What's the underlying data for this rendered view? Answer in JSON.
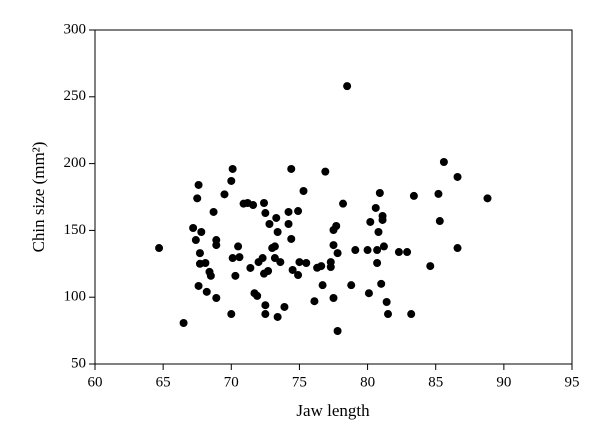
{
  "chart_data": {
    "type": "scatter",
    "xlabel": "Jaw length",
    "ylabel": "Chin size (mm²)",
    "xlim": [
      60,
      95
    ],
    "xticks": [
      60,
      65,
      70,
      75,
      80,
      85,
      90,
      95
    ],
    "ylim": [
      50,
      300
    ],
    "yticks": [
      50,
      100,
      150,
      200,
      250,
      300
    ],
    "color": "#000000",
    "x": [
      64.7,
      66.5,
      67.2,
      67.4,
      67.5,
      67.6,
      67.6,
      67.8,
      67.7,
      67.7,
      68.1,
      68.2,
      68.4,
      68.5,
      68.7,
      68.9,
      68.9,
      68.9,
      69.5,
      70.0,
      70.1,
      70.0,
      70.1,
      70.3,
      70.5,
      70.6,
      70.9,
      71.2,
      71.4,
      71.6,
      71.7,
      71.9,
      72.0,
      72.3,
      72.4,
      72.5,
      72.5,
      72.5,
      72.4,
      72.8,
      73.0,
      72.7,
      73.3,
      73.2,
      73.2,
      73.4,
      73.4,
      73.6,
      73.9,
      74.2,
      74.2,
      74.4,
      74.4,
      74.5,
      74.9,
      74.9,
      75.0,
      75.3,
      75.5,
      76.1,
      76.3,
      76.6,
      76.7,
      76.9,
      77.3,
      77.3,
      77.5,
      77.5,
      77.7,
      77.5,
      77.8,
      77.8,
      78.2,
      78.5,
      78.8,
      79.1,
      80.0,
      80.1,
      80.2,
      80.6,
      80.7,
      80.8,
      80.7,
      80.9,
      81.0,
      81.1,
      81.1,
      81.2,
      81.4,
      81.5,
      82.3,
      82.9,
      83.2,
      83.4,
      84.6,
      85.2,
      85.3,
      85.6,
      86.6,
      86.6,
      88.8
    ],
    "values": [
      136.8,
      80.7,
      151.8,
      142.8,
      174,
      184,
      108.4,
      148.8,
      133,
      125,
      125.6,
      104,
      119,
      116,
      163.8,
      142.8,
      139,
      99.4,
      177,
      187,
      196,
      87.4,
      129.3,
      116,
      138,
      130,
      170,
      170.5,
      121.9,
      169,
      103,
      101,
      126.3,
      129.3,
      170.5,
      163,
      94,
      87.4,
      117.6,
      154.8,
      136.8,
      119.6,
      159.3,
      138,
      129.3,
      148.8,
      85.2,
      126.3,
      92.7,
      154.8,
      163.8,
      196,
      143.6,
      120.4,
      164.5,
      116.6,
      126.3,
      179.5,
      125.6,
      97,
      122,
      123.3,
      109,
      194,
      126.3,
      122.6,
      150.3,
      139,
      153.3,
      99.4,
      74.7,
      133,
      170,
      258,
      109,
      135.3,
      135.3,
      103,
      156.3,
      166.8,
      125.6,
      148.8,
      135.3,
      178,
      110,
      157.8,
      160.8,
      138,
      96.4,
      87.4,
      133.8,
      133.8,
      87.4,
      175.8,
      123.3,
      177.3,
      157,
      201.2,
      190,
      136.8,
      174
    ]
  }
}
